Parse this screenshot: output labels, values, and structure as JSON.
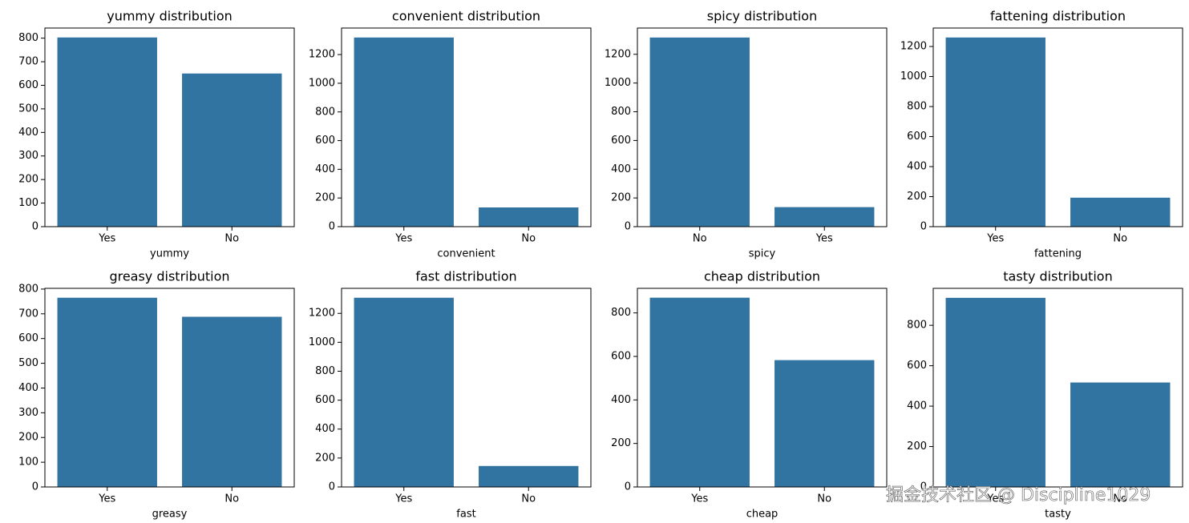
{
  "chart_data": [
    {
      "type": "bar",
      "title": "yummy distribution",
      "xlabel": "yummy",
      "categories": [
        "Yes",
        "No"
      ],
      "values": [
        803,
        650
      ],
      "color": "#3274a1",
      "ylim": [
        0,
        843
      ],
      "yticks": [
        0,
        100,
        200,
        300,
        400,
        500,
        600,
        700,
        800
      ]
    },
    {
      "type": "bar",
      "title": "convenient distribution",
      "xlabel": "convenient",
      "categories": [
        "Yes",
        "No"
      ],
      "values": [
        1319,
        134
      ],
      "color": "#3274a1",
      "ylim": [
        0,
        1385
      ],
      "yticks": [
        0,
        200,
        400,
        600,
        800,
        1000,
        1200
      ]
    },
    {
      "type": "bar",
      "title": "spicy distribution",
      "xlabel": "spicy",
      "categories": [
        "No",
        "Yes"
      ],
      "values": [
        1317,
        136
      ],
      "color": "#3274a1",
      "ylim": [
        0,
        1383
      ],
      "yticks": [
        0,
        200,
        400,
        600,
        800,
        1000,
        1200
      ]
    },
    {
      "type": "bar",
      "title": "fattening distribution",
      "xlabel": "fattening",
      "categories": [
        "Yes",
        "No"
      ],
      "values": [
        1260,
        193
      ],
      "color": "#3274a1",
      "ylim": [
        0,
        1323
      ],
      "yticks": [
        0,
        200,
        400,
        600,
        800,
        1000,
        1200
      ]
    },
    {
      "type": "bar",
      "title": "greasy distribution",
      "xlabel": "greasy",
      "categories": [
        "Yes",
        "No"
      ],
      "values": [
        765,
        688
      ],
      "color": "#3274a1",
      "ylim": [
        0,
        803
      ],
      "yticks": [
        0,
        100,
        200,
        300,
        400,
        500,
        600,
        700,
        800
      ]
    },
    {
      "type": "bar",
      "title": "fast distribution",
      "xlabel": "fast",
      "categories": [
        "Yes",
        "No"
      ],
      "values": [
        1308,
        145
      ],
      "color": "#3274a1",
      "ylim": [
        0,
        1373
      ],
      "yticks": [
        0,
        200,
        400,
        600,
        800,
        1000,
        1200
      ]
    },
    {
      "type": "bar",
      "title": "cheap distribution",
      "xlabel": "cheap",
      "categories": [
        "Yes",
        "No"
      ],
      "values": [
        870,
        583
      ],
      "color": "#3274a1",
      "ylim": [
        0,
        913
      ],
      "yticks": [
        0,
        200,
        400,
        600,
        800
      ]
    },
    {
      "type": "bar",
      "title": "tasty distribution",
      "xlabel": "tasty",
      "categories": [
        "Yes",
        "No"
      ],
      "values": [
        936,
        517
      ],
      "color": "#3274a1",
      "ylim": [
        0,
        983
      ],
      "yticks": [
        0,
        200,
        400,
        600,
        800
      ]
    }
  ],
  "watermark": "掘金技术社区 @ Discipline1029"
}
